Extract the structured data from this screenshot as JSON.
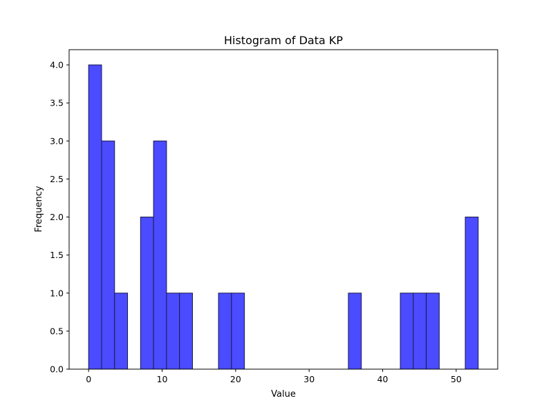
{
  "chart_data": {
    "type": "bar",
    "title": "Histogram of Data KP",
    "xlabel": "Value",
    "ylabel": "Frequency",
    "bins": {
      "start": 0,
      "width": 1.7667,
      "counts": [
        4,
        3,
        1,
        0,
        2,
        3,
        1,
        1,
        0,
        0,
        1,
        1,
        0,
        0,
        0,
        0,
        0,
        0,
        0,
        0,
        1,
        0,
        0,
        0,
        1,
        1,
        1,
        0,
        0,
        2
      ]
    },
    "xlim": [
      -2.65,
      55.65
    ],
    "ylim": [
      0,
      4.2
    ],
    "xticks": [
      0,
      10,
      20,
      30,
      40,
      50
    ],
    "yticks": [
      0.0,
      0.5,
      1.0,
      1.5,
      2.0,
      2.5,
      3.0,
      3.5,
      4.0
    ],
    "ytick_labels": [
      "0.0",
      "0.5",
      "1.0",
      "1.5",
      "2.0",
      "2.5",
      "3.0",
      "3.5",
      "4.0"
    ],
    "bar_color": "#4b4bff",
    "edge_color": "#1a1a4d",
    "grid": false,
    "legend": "none"
  }
}
